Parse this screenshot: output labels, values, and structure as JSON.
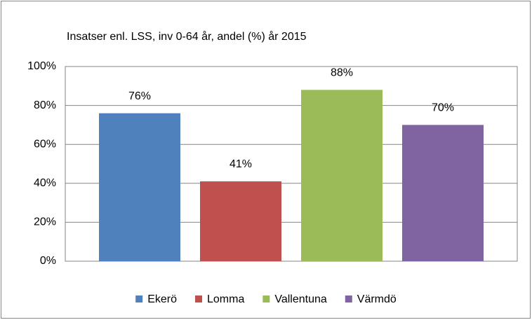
{
  "chart_data": {
    "type": "bar",
    "title": "Insatser enl. LSS, inv 0-64 år, andel (%) år 2015",
    "series": [
      {
        "name": "Ekerö",
        "color": "#4f81bd",
        "values": [
          76
        ],
        "value_labels": [
          "76%"
        ]
      },
      {
        "name": "Lomma",
        "color": "#c0504d",
        "values": [
          41
        ],
        "value_labels": [
          "41%"
        ]
      },
      {
        "name": "Vallentuna",
        "color": "#9bbb59",
        "values": [
          88
        ],
        "value_labels": [
          "88%"
        ]
      },
      {
        "name": "Värmdö",
        "color": "#8064a2",
        "values": [
          70
        ],
        "value_labels": [
          "70%"
        ]
      }
    ],
    "ylim": [
      0,
      100
    ],
    "yticks": [
      {
        "value": 0,
        "label": "0%"
      },
      {
        "value": 20,
        "label": "20%"
      },
      {
        "value": 40,
        "label": "40%"
      },
      {
        "value": 60,
        "label": "60%"
      },
      {
        "value": 80,
        "label": "80%"
      },
      {
        "value": 100,
        "label": "100%"
      }
    ],
    "grid": true,
    "legend": "bottom"
  }
}
